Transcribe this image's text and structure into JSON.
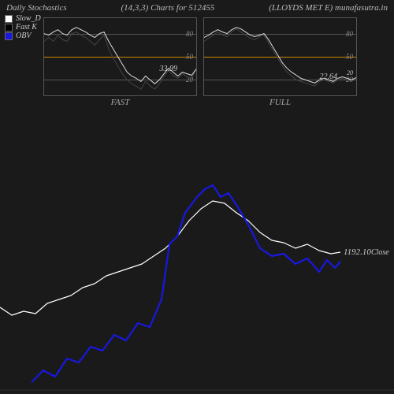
{
  "header": {
    "title": "Daily Stochastics",
    "params": "(14,3,3) Charts for 512455",
    "symbol": "(LLOYDS MET E) munafasutra.in"
  },
  "legend": {
    "slowD": {
      "label": "Slow_D",
      "color": "#ffffff"
    },
    "fastK": {
      "label": "Fast K",
      "color": "#000000"
    },
    "obv": {
      "label": "OBV",
      "color": "#1818e0"
    }
  },
  "mini_common": {
    "border_color": "#555555",
    "grid_color_80": "#555555",
    "grid_color_50": "#cc8800",
    "grid_color_20": "#555555",
    "ylim": [
      0,
      100
    ],
    "ticks": [
      20,
      50,
      80
    ],
    "tick_labels": [
      "20",
      "50",
      "80"
    ],
    "line_width": 1
  },
  "mini_fast": {
    "label": "FAST",
    "value_label": "33.99",
    "series_white": [
      80,
      78,
      82,
      85,
      80,
      78,
      85,
      88,
      85,
      82,
      78,
      75,
      80,
      82,
      70,
      60,
      50,
      40,
      30,
      25,
      22,
      18,
      25,
      20,
      15,
      20,
      28,
      35,
      30,
      25,
      30,
      28,
      26,
      34
    ],
    "series_black": [
      70,
      75,
      70,
      78,
      72,
      70,
      80,
      82,
      78,
      75,
      70,
      65,
      72,
      78,
      60,
      48,
      38,
      28,
      20,
      15,
      12,
      8,
      18,
      12,
      8,
      15,
      25,
      32,
      26,
      22,
      28,
      24,
      22,
      34
    ]
  },
  "mini_full": {
    "label": "FULL",
    "value_label": "22.64",
    "value_label2": "20",
    "series_white": [
      75,
      78,
      82,
      85,
      82,
      80,
      85,
      88,
      86,
      82,
      78,
      76,
      78,
      80,
      72,
      62,
      52,
      42,
      35,
      30,
      26,
      22,
      20,
      18,
      16,
      20,
      22,
      20,
      18,
      22,
      24,
      22,
      20,
      23
    ],
    "series_black": [
      70,
      74,
      78,
      82,
      78,
      76,
      82,
      86,
      82,
      78,
      74,
      72,
      76,
      78,
      68,
      58,
      48,
      38,
      30,
      25,
      20,
      18,
      16,
      14,
      12,
      18,
      20,
      18,
      16,
      20,
      22,
      20,
      18,
      23
    ]
  },
  "main": {
    "background": "#1a1a1a",
    "close_value": "1192.10",
    "close_text": "Close",
    "white_line": {
      "color": "#ffffff",
      "width": 1.2,
      "points": [
        [
          0,
          240
        ],
        [
          15,
          250
        ],
        [
          30,
          245
        ],
        [
          45,
          248
        ],
        [
          60,
          235
        ],
        [
          75,
          230
        ],
        [
          90,
          225
        ],
        [
          105,
          215
        ],
        [
          120,
          210
        ],
        [
          135,
          200
        ],
        [
          150,
          195
        ],
        [
          165,
          190
        ],
        [
          180,
          185
        ],
        [
          195,
          175
        ],
        [
          210,
          165
        ],
        [
          225,
          150
        ],
        [
          240,
          130
        ],
        [
          255,
          115
        ],
        [
          270,
          105
        ],
        [
          285,
          108
        ],
        [
          300,
          120
        ],
        [
          315,
          130
        ],
        [
          330,
          145
        ],
        [
          345,
          155
        ],
        [
          360,
          158
        ],
        [
          375,
          165
        ],
        [
          390,
          160
        ],
        [
          405,
          168
        ],
        [
          420,
          172
        ],
        [
          432,
          170
        ]
      ]
    },
    "blue_line": {
      "color": "#1818e0",
      "width": 2.2,
      "points": [
        [
          40,
          335
        ],
        [
          55,
          320
        ],
        [
          70,
          328
        ],
        [
          85,
          305
        ],
        [
          100,
          310
        ],
        [
          115,
          290
        ],
        [
          130,
          295
        ],
        [
          145,
          275
        ],
        [
          160,
          282
        ],
        [
          175,
          260
        ],
        [
          190,
          265
        ],
        [
          205,
          230
        ],
        [
          215,
          160
        ],
        [
          225,
          150
        ],
        [
          235,
          120
        ],
        [
          250,
          100
        ],
        [
          260,
          90
        ],
        [
          270,
          85
        ],
        [
          280,
          100
        ],
        [
          290,
          95
        ],
        [
          300,
          110
        ],
        [
          315,
          135
        ],
        [
          330,
          165
        ],
        [
          345,
          175
        ],
        [
          360,
          172
        ],
        [
          375,
          185
        ],
        [
          390,
          178
        ],
        [
          405,
          195
        ],
        [
          415,
          180
        ],
        [
          425,
          190
        ],
        [
          432,
          182
        ]
      ]
    }
  }
}
